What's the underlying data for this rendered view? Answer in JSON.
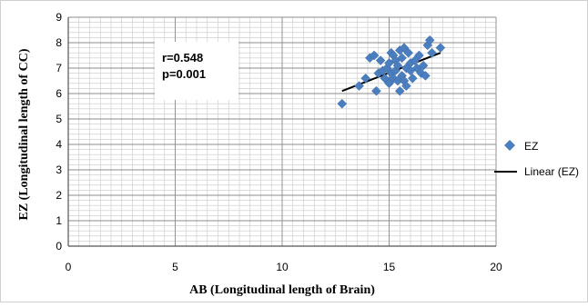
{
  "chart_data": {
    "type": "scatter",
    "title": "",
    "xlabel": "AB (Longitudinal length of Brain)",
    "ylabel": "EZ (Longitudinal length of CC)",
    "xlim": [
      0,
      20
    ],
    "ylim": [
      0,
      9
    ],
    "xticks": [
      "0",
      "5",
      "10",
      "15",
      "20"
    ],
    "yticks": [
      "0",
      "1",
      "2",
      "3",
      "4",
      "5",
      "6",
      "7",
      "8",
      "9"
    ],
    "grid": true,
    "legend_position": "right",
    "annotation": {
      "r": "r=0.548",
      "p": "p=0.001"
    },
    "series": [
      {
        "name": "EZ",
        "marker": "diamond",
        "color": "#4a7ebf",
        "x": [
          12.8,
          13.6,
          13.9,
          14.1,
          14.3,
          14.4,
          14.5,
          14.6,
          14.7,
          14.8,
          14.9,
          15.0,
          15.0,
          15.1,
          15.1,
          15.2,
          15.2,
          15.3,
          15.3,
          15.4,
          15.4,
          15.5,
          15.5,
          15.6,
          15.6,
          15.7,
          15.7,
          15.8,
          15.8,
          15.9,
          16.0,
          16.0,
          16.1,
          16.2,
          16.3,
          16.4,
          16.5,
          16.6,
          16.7,
          16.8,
          16.9,
          17.0,
          17.4
        ],
        "y": [
          5.6,
          6.3,
          6.6,
          7.4,
          7.5,
          6.1,
          6.8,
          7.3,
          6.9,
          6.6,
          7.0,
          7.2,
          6.4,
          7.6,
          6.8,
          7.5,
          6.6,
          7.3,
          6.9,
          6.5,
          7.1,
          7.7,
          6.1,
          6.7,
          7.4,
          7.8,
          6.5,
          7.0,
          6.3,
          7.6,
          6.9,
          7.2,
          6.6,
          7.3,
          7.0,
          7.5,
          6.8,
          7.1,
          6.7,
          7.9,
          8.1,
          7.6,
          7.8
        ]
      },
      {
        "name": "Linear (EZ)",
        "type": "line",
        "color": "#000000",
        "x": [
          12.8,
          17.4
        ],
        "y": [
          6.1,
          7.6
        ]
      }
    ]
  }
}
